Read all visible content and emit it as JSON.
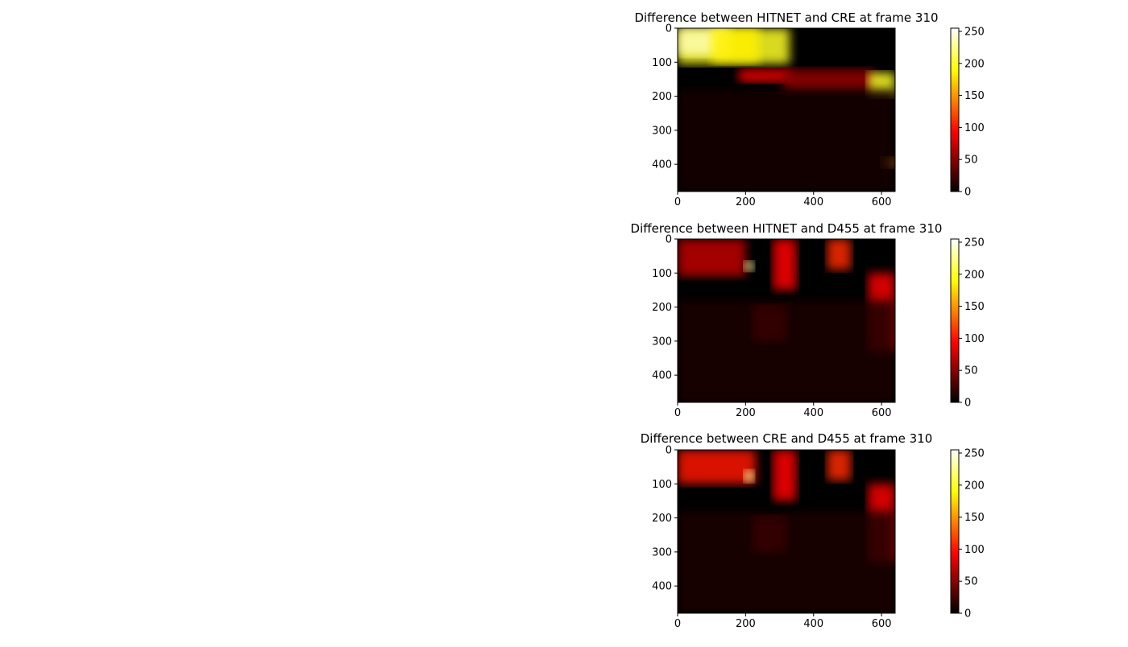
{
  "chart_data": [
    {
      "type": "heatmap",
      "title": "Difference between HITNET and CRE at frame 310",
      "x_ticks": [
        0,
        200,
        400,
        600
      ],
      "y_ticks": [
        0,
        100,
        200,
        300,
        400
      ],
      "xlim": [
        0,
        640
      ],
      "ylim": [
        480,
        0
      ],
      "colorbar": {
        "colormap": "hot",
        "range": [
          0,
          255
        ],
        "ticks": [
          0,
          50,
          100,
          150,
          200,
          250
        ]
      },
      "regions": [
        {
          "x": [
            0,
            330
          ],
          "y": [
            0,
            105
          ],
          "value": 200
        },
        {
          "x": [
            0,
            155
          ],
          "y": [
            0,
            80
          ],
          "value": 235
        },
        {
          "x": [
            100,
            240
          ],
          "y": [
            0,
            100
          ],
          "value": 185
        },
        {
          "x": [
            180,
            330
          ],
          "y": [
            120,
            160
          ],
          "value": 90
        },
        {
          "x": [
            310,
            580
          ],
          "y": [
            120,
            190
          ],
          "value": 55
        },
        {
          "x": [
            560,
            640
          ],
          "y": [
            130,
            200
          ],
          "value": 200
        },
        {
          "x": [
            600,
            640
          ],
          "y": [
            380,
            410
          ],
          "value": 160
        },
        {
          "x": [
            0,
            640
          ],
          "y": [
            180,
            480
          ],
          "value": 8
        }
      ]
    },
    {
      "type": "heatmap",
      "title": "Difference between HITNET and D455 at frame 310",
      "x_ticks": [
        0,
        200,
        400,
        600
      ],
      "y_ticks": [
        0,
        100,
        200,
        300,
        400
      ],
      "xlim": [
        0,
        640
      ],
      "ylim": [
        480,
        0
      ],
      "colorbar": {
        "colormap": "hot",
        "range": [
          0,
          255
        ],
        "ticks": [
          0,
          50,
          100,
          150,
          200,
          250
        ]
      },
      "regions": [
        {
          "x": [
            0,
            200
          ],
          "y": [
            0,
            110
          ],
          "value": 70
        },
        {
          "x": [
            195,
            225
          ],
          "y": [
            65,
            95
          ],
          "value": 230
        },
        {
          "x": [
            280,
            350
          ],
          "y": [
            0,
            150
          ],
          "value": 95
        },
        {
          "x": [
            440,
            510
          ],
          "y": [
            0,
            90
          ],
          "value": 110
        },
        {
          "x": [
            560,
            640
          ],
          "y": [
            100,
            330
          ],
          "value": 90
        },
        {
          "x": [
            220,
            320
          ],
          "y": [
            200,
            300
          ],
          "value": 80
        },
        {
          "x": [
            0,
            640
          ],
          "y": [
            180,
            480
          ],
          "value": 10
        }
      ]
    },
    {
      "type": "heatmap",
      "title": "Difference between CRE and D455 at frame 310",
      "x_ticks": [
        0,
        200,
        400,
        600
      ],
      "y_ticks": [
        0,
        100,
        200,
        300,
        400
      ],
      "xlim": [
        0,
        640
      ],
      "ylim": [
        480,
        0
      ],
      "colorbar": {
        "colormap": "hot",
        "range": [
          0,
          255
        ],
        "ticks": [
          0,
          50,
          100,
          150,
          200,
          250
        ]
      },
      "regions": [
        {
          "x": [
            0,
            230
          ],
          "y": [
            0,
            100
          ],
          "value": 100
        },
        {
          "x": [
            195,
            225
          ],
          "y": [
            60,
            95
          ],
          "value": 230
        },
        {
          "x": [
            280,
            350
          ],
          "y": [
            0,
            150
          ],
          "value": 95
        },
        {
          "x": [
            440,
            510
          ],
          "y": [
            0,
            90
          ],
          "value": 110
        },
        {
          "x": [
            560,
            640
          ],
          "y": [
            100,
            330
          ],
          "value": 90
        },
        {
          "x": [
            220,
            320
          ],
          "y": [
            200,
            300
          ],
          "value": 80
        },
        {
          "x": [
            0,
            640
          ],
          "y": [
            180,
            480
          ],
          "value": 10
        }
      ]
    }
  ]
}
